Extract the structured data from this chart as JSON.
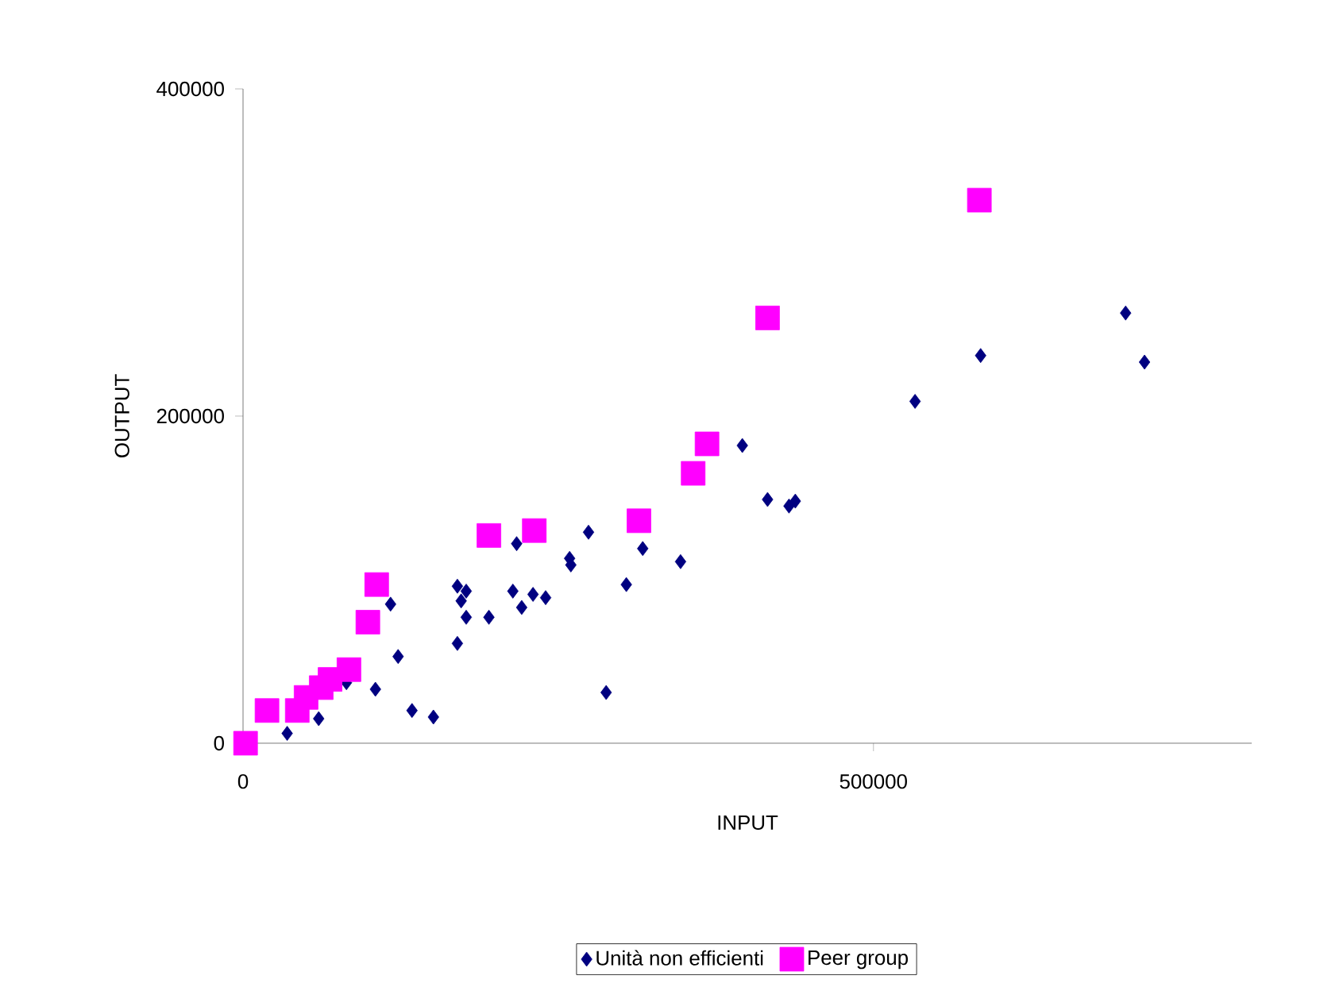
{
  "chart_data": {
    "type": "scatter",
    "xlabel": "INPUT",
    "ylabel": "OUTPUT",
    "xlim": [
      0,
      800000
    ],
    "ylim": [
      0,
      400000
    ],
    "xticks": [
      0,
      500000
    ],
    "yticks": [
      0,
      200000,
      400000
    ],
    "grid": false,
    "legend": "bottom",
    "series": [
      {
        "name": "Unità non efficienti",
        "color": "#000080",
        "marker": "diamond",
        "x": [
          35000,
          60000,
          82000,
          105000,
          117000,
          123000,
          134000,
          151000,
          170000,
          170000,
          177000,
          173000,
          177000,
          195000,
          214000,
          217000,
          221000,
          230000,
          240000,
          259000,
          260000,
          274000,
          288000,
          304000,
          317000,
          347000,
          396000,
          416000,
          433000,
          438000,
          533000,
          585000,
          700000,
          715000
        ],
        "values": [
          6000,
          15000,
          37000,
          33000,
          85000,
          53000,
          20000,
          16000,
          61000,
          96000,
          93000,
          87000,
          77000,
          77000,
          93000,
          122000,
          83000,
          91000,
          89000,
          113000,
          109000,
          129000,
          31000,
          97000,
          119000,
          111000,
          182000,
          149000,
          145000,
          148000,
          209000,
          237000,
          263000,
          233000
        ]
      },
      {
        "name": "Peer group",
        "color": "#ff00ff",
        "marker": "square",
        "x": [
          2000,
          19000,
          43000,
          50000,
          62000,
          69000,
          84000,
          99000,
          106000,
          195000,
          231000,
          314000,
          357000,
          368000,
          416000,
          584000
        ],
        "values": [
          0,
          20000,
          20000,
          28000,
          34000,
          39000,
          45000,
          74000,
          97000,
          127000,
          130000,
          136000,
          165000,
          183000,
          260000,
          332000
        ]
      }
    ]
  }
}
